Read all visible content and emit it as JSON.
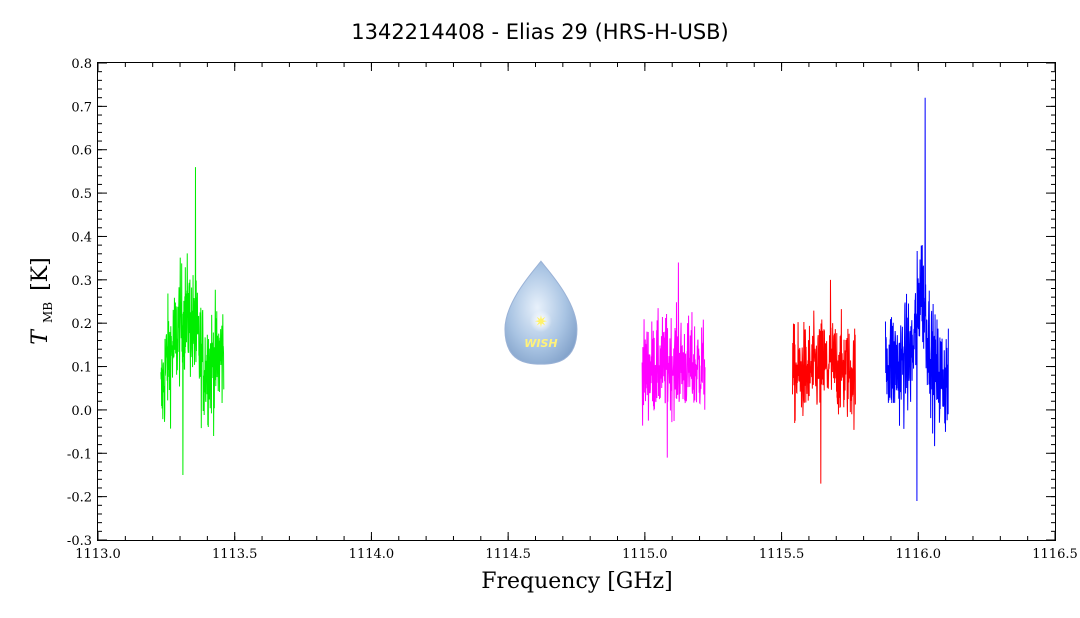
{
  "chart_data": {
    "type": "line",
    "title": "1342214408 - Elias 29 (HRS-H-USB)",
    "xlabel": "Frequency [GHz]",
    "ylabel_main": "T",
    "ylabel_sub": "MB",
    "ylabel_unit": "[K]",
    "xlim": [
      1113.0,
      1116.5
    ],
    "ylim": [
      -0.3,
      0.8
    ],
    "x_major_ticks": [
      1113.0,
      1113.5,
      1114.0,
      1114.5,
      1115.0,
      1115.5,
      1116.0,
      1116.5
    ],
    "x_tick_labels": [
      "1113.0",
      "1113.5",
      "1114.0",
      "1114.5",
      "1115.0",
      "1115.5",
      "1116.0",
      "1116.5"
    ],
    "x_minor_step": 0.1,
    "y_major_ticks": [
      -0.3,
      -0.2,
      -0.1,
      0.0,
      0.1,
      0.2,
      0.3,
      0.4,
      0.5,
      0.6,
      0.7,
      0.8
    ],
    "y_tick_labels": [
      "-0.3",
      "-0.2",
      "-0.1",
      "0.0",
      "0.1",
      "0.2",
      "0.3",
      "0.4",
      "0.5",
      "0.6",
      "0.7",
      "0.8"
    ],
    "y_minor_step": 0.02,
    "grid": false,
    "series": [
      {
        "color": "#00ee00",
        "x_start": 1113.23,
        "x_end": 1113.46,
        "noise_amplitude": 0.12,
        "points": [
          [
            1113.23,
            0.02
          ],
          [
            1113.25,
            0.11
          ],
          [
            1113.28,
            0.15
          ],
          [
            1113.3,
            0.2
          ],
          [
            1113.33,
            0.22
          ],
          [
            1113.36,
            0.16
          ],
          [
            1113.39,
            0.1
          ],
          [
            1113.42,
            0.11
          ],
          [
            1113.46,
            0.13
          ]
        ],
        "max": 0.56,
        "min": -0.15
      },
      {
        "color": "#ff00ff",
        "x_start": 1114.99,
        "x_end": 1115.22,
        "noise_amplitude": 0.1,
        "points": [
          [
            1114.99,
            0.09
          ],
          [
            1115.05,
            0.1
          ],
          [
            1115.1,
            0.11
          ],
          [
            1115.15,
            0.1
          ],
          [
            1115.22,
            0.1
          ]
        ],
        "max": 0.34,
        "min": -0.11
      },
      {
        "color": "#ff0000",
        "x_start": 1115.54,
        "x_end": 1115.77,
        "noise_amplitude": 0.1,
        "points": [
          [
            1115.54,
            0.08
          ],
          [
            1115.6,
            0.09
          ],
          [
            1115.65,
            0.1
          ],
          [
            1115.7,
            0.1
          ],
          [
            1115.77,
            0.08
          ]
        ],
        "max": 0.3,
        "min": -0.17
      },
      {
        "color": "#0000ff",
        "x_start": 1115.88,
        "x_end": 1116.11,
        "noise_amplitude": 0.12,
        "points": [
          [
            1115.88,
            0.12
          ],
          [
            1115.93,
            0.1
          ],
          [
            1115.98,
            0.13
          ],
          [
            1116.01,
            0.3
          ],
          [
            1116.03,
            0.2
          ],
          [
            1116.06,
            0.08
          ],
          [
            1116.11,
            0.07
          ]
        ],
        "max": 0.72,
        "min": -0.21
      }
    ]
  },
  "logo": {
    "text": "WISH",
    "x": 1114.62,
    "y": 0.2
  }
}
